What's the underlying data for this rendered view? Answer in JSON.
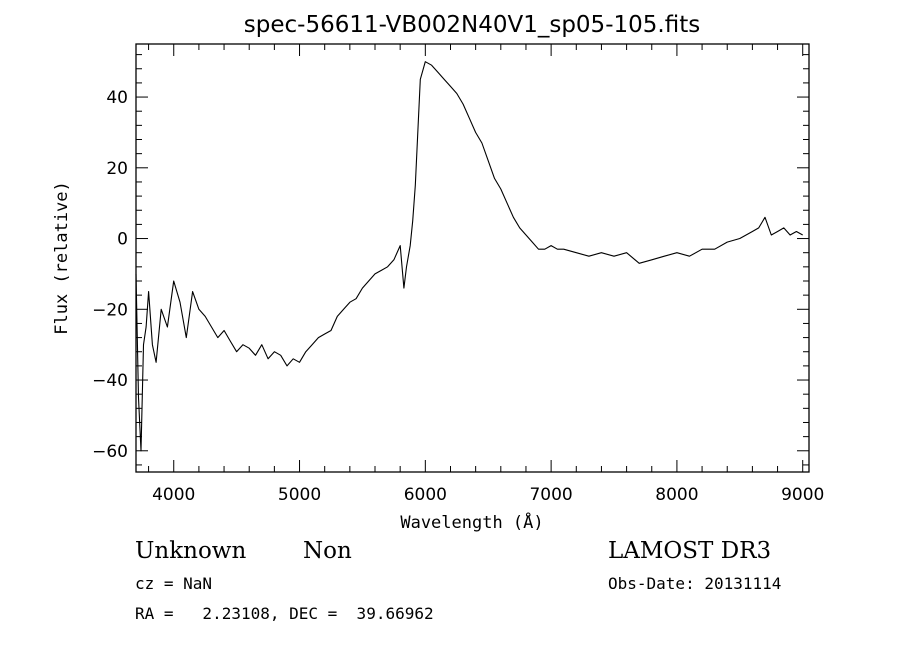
{
  "chart_data": {
    "type": "line",
    "title": "spec-56611-VB002N40V1_sp05-105.fits",
    "xlabel": "Wavelength (Å)",
    "ylabel": "Flux (relative)",
    "xlim": [
      3700,
      9050
    ],
    "ylim": [
      -66,
      55
    ],
    "xticks": [
      4000,
      5000,
      6000,
      7000,
      8000,
      9000
    ],
    "yticks": [
      -60,
      -40,
      -20,
      0,
      20,
      40
    ],
    "grid": false,
    "line_color": "#000000",
    "series": [
      {
        "x": [
          3700,
          3720,
          3740,
          3760,
          3780,
          3800,
          3830,
          3860,
          3900,
          3950,
          4000,
          4050,
          4100,
          4150,
          4200,
          4250,
          4300,
          4350,
          4400,
          4450,
          4500,
          4550,
          4600,
          4650,
          4700,
          4750,
          4800,
          4850,
          4900,
          4950,
          5000,
          5050,
          5100,
          5150,
          5200,
          5250,
          5300,
          5350,
          5400,
          5450,
          5500,
          5550,
          5600,
          5650,
          5700,
          5750,
          5800,
          5830,
          5850,
          5880,
          5900,
          5920,
          5940,
          5960,
          6000,
          6050,
          6100,
          6150,
          6200,
          6250,
          6300,
          6350,
          6400,
          6450,
          6500,
          6550,
          6600,
          6650,
          6700,
          6750,
          6800,
          6850,
          6900,
          6950,
          7000,
          7050,
          7100,
          7200,
          7300,
          7400,
          7500,
          7600,
          7700,
          7800,
          7900,
          8000,
          8100,
          8200,
          8300,
          8400,
          8500,
          8600,
          8650,
          8700,
          8750,
          8800,
          8850,
          8900,
          8950,
          9000
        ],
        "y": [
          -10,
          -45,
          -60,
          -30,
          -25,
          -15,
          -30,
          -35,
          -20,
          -25,
          -12,
          -18,
          -28,
          -15,
          -20,
          -22,
          -25,
          -28,
          -26,
          -29,
          -32,
          -30,
          -31,
          -33,
          -30,
          -34,
          -32,
          -33,
          -36,
          -34,
          -35,
          -32,
          -30,
          -28,
          -27,
          -26,
          -22,
          -20,
          -18,
          -17,
          -14,
          -12,
          -10,
          -9,
          -8,
          -6,
          -2,
          -14,
          -8,
          -2,
          5,
          15,
          30,
          45,
          50,
          49,
          47,
          45,
          43,
          41,
          38,
          34,
          30,
          27,
          22,
          17,
          14,
          10,
          6,
          3,
          1,
          -1,
          -3,
          -3,
          -2,
          -3,
          -3,
          -4,
          -5,
          -4,
          -5,
          -4,
          -7,
          -6,
          -5,
          -4,
          -5,
          -3,
          -3,
          -1,
          0,
          2,
          3,
          6,
          1,
          2,
          3,
          1,
          2,
          1
        ]
      }
    ]
  },
  "info": {
    "object_class": "Unknown",
    "object_subclass": "Non",
    "survey": "LAMOST DR3",
    "cz_line": "cz = NaN",
    "obs_date_line": "Obs-Date: 20131114",
    "coords_line": "RA =   2.23108, DEC =  39.66962"
  }
}
